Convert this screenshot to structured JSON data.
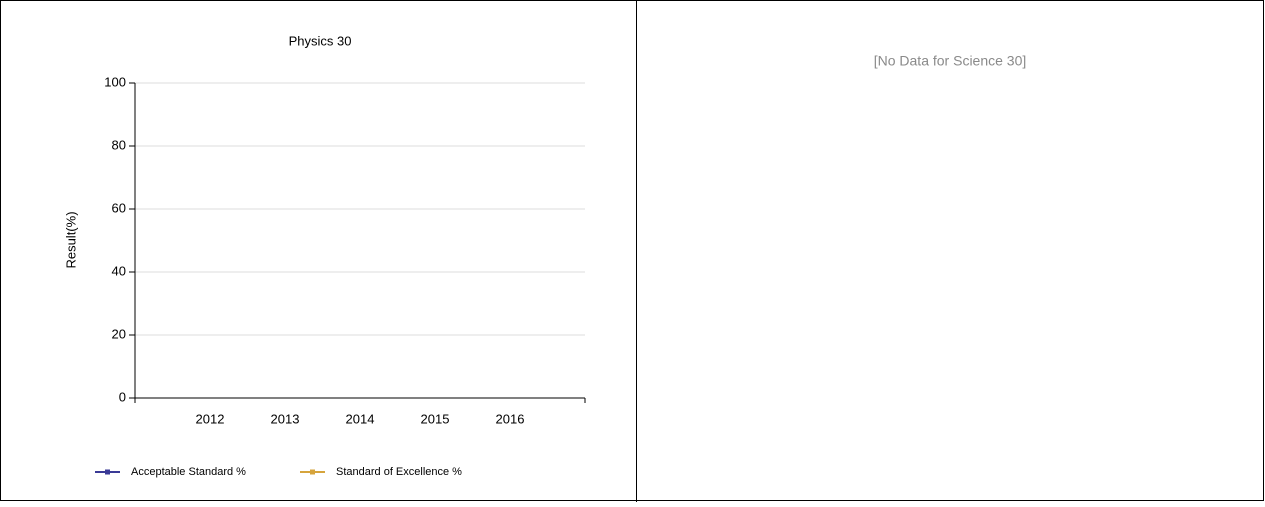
{
  "chart_data": {
    "type": "line",
    "title": "Physics 30",
    "y_label": "Result(%)",
    "x": [
      2012,
      2013,
      2014,
      2015,
      2016
    ],
    "xlim": [
      2011,
      2017
    ],
    "xticks": [
      2012,
      2013,
      2014,
      2015,
      2016
    ],
    "ylim": [
      0,
      100
    ],
    "yticks": [
      0,
      20,
      40,
      60,
      80,
      100
    ],
    "grid": true,
    "legend": "bottom",
    "series": [
      {
        "name": "Acceptable Standard %",
        "color": "#3a3a96",
        "values": [
          null,
          null,
          null,
          null,
          null
        ]
      },
      {
        "name": "Standard of Excellence %",
        "color": "#d6a43c",
        "values": [
          null,
          null,
          null,
          null,
          null
        ]
      }
    ]
  },
  "right_panel": {
    "message": "[No Data for Science 30]"
  }
}
